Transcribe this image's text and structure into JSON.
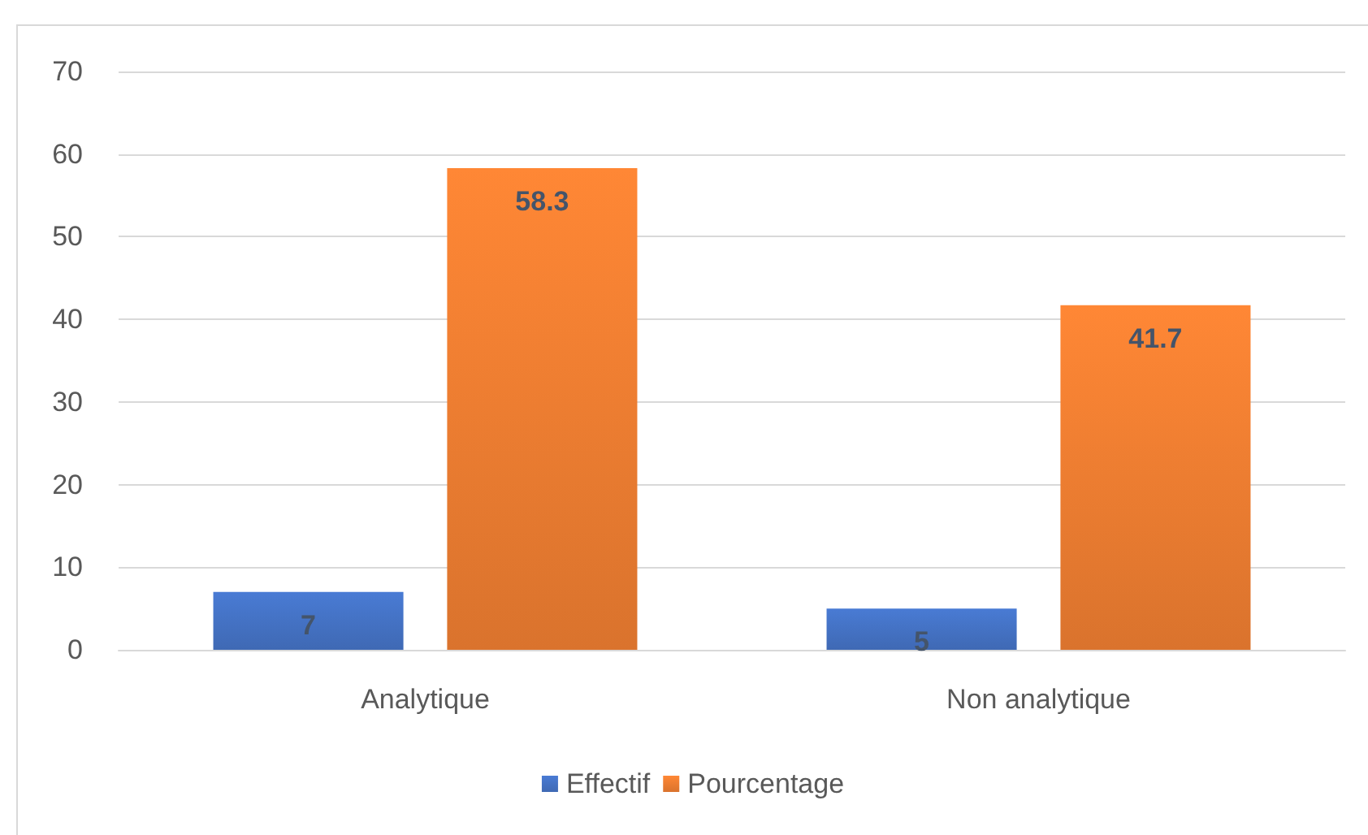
{
  "chart_data": {
    "type": "bar",
    "categories": [
      "Analytique",
      "Non analytique"
    ],
    "series": [
      {
        "name": "Effectif",
        "color": "#4472c4",
        "values": [
          7,
          5
        ]
      },
      {
        "name": "Pourcentage",
        "color": "#ed7d31",
        "values": [
          58.3,
          41.7
        ]
      }
    ],
    "ylim": [
      0,
      70
    ],
    "yticks": [
      0,
      10,
      20,
      30,
      40,
      50,
      60,
      70
    ],
    "grid": "y",
    "legend": "bottom",
    "data_labels": true
  }
}
